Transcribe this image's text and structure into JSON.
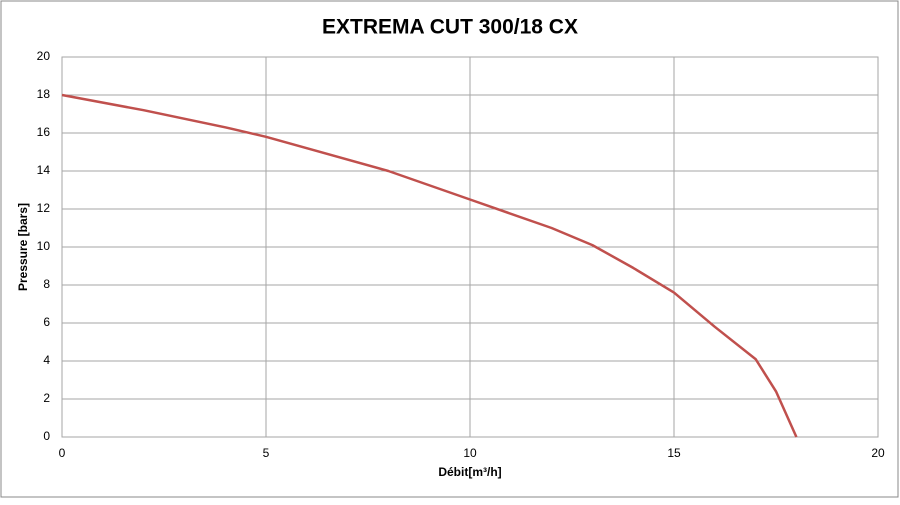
{
  "chart_data": {
    "type": "line",
    "title": "EXTREMA CUT 300/18 CX",
    "x_label": "Débit[m³/h]",
    "y_label": "Pressure [bars]",
    "x": [
      0,
      2,
      4,
      5,
      6,
      8,
      10,
      12,
      13,
      14,
      15,
      16,
      17,
      17.5,
      18
    ],
    "series": [
      {
        "name": "Pressure",
        "color": "#c0504d",
        "values": [
          18,
          17.2,
          16.3,
          15.8,
          15.2,
          14,
          12.5,
          11,
          10.1,
          8.9,
          7.6,
          5.8,
          4.1,
          2.4,
          0
        ]
      }
    ],
    "xlim": [
      0,
      20
    ],
    "xticks": [
      0,
      5,
      10,
      15,
      20
    ],
    "ylim": [
      0,
      20
    ],
    "yticks": [
      0,
      2,
      4,
      6,
      8,
      10,
      12,
      14,
      16,
      18,
      20
    ],
    "grid": true
  }
}
